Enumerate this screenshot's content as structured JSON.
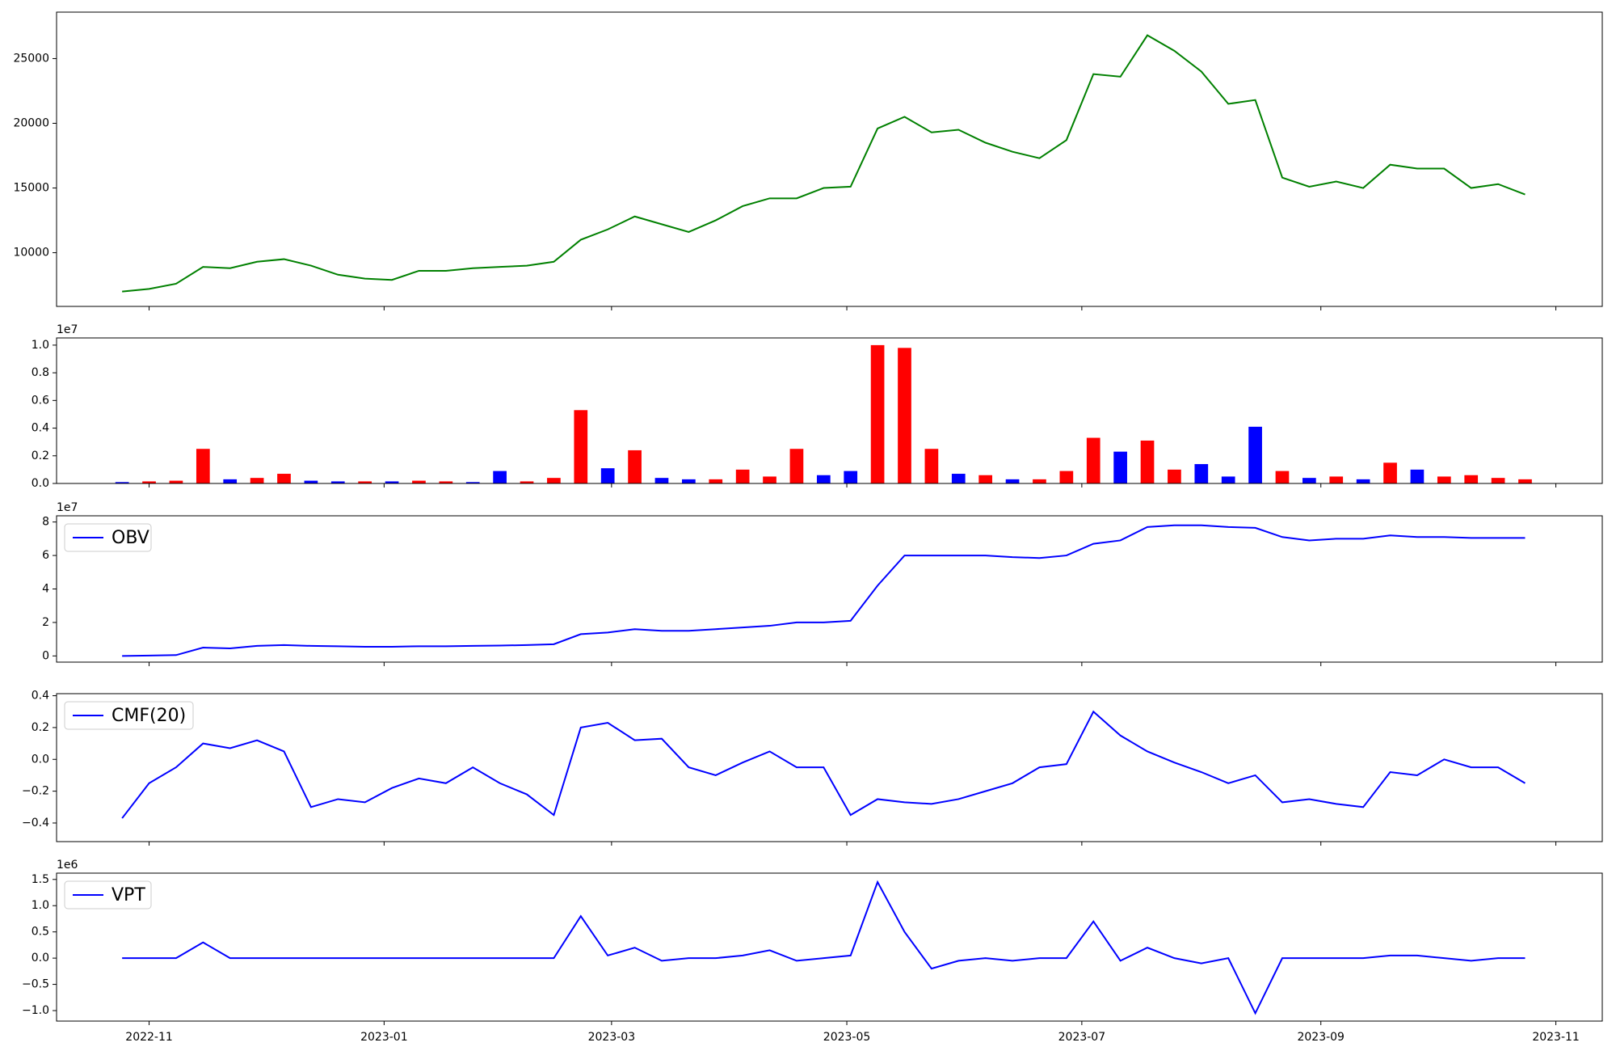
{
  "chart_data": [
    {
      "type": "line",
      "color": "#008000",
      "values": [
        7000,
        7200,
        7600,
        8900,
        8800,
        9300,
        9500,
        9000,
        8300,
        8000,
        7900,
        8600,
        8600,
        8800,
        8900,
        9000,
        9300,
        11000,
        11800,
        12800,
        12200,
        11600,
        12500,
        13600,
        14200,
        14200,
        15000,
        15100,
        19600,
        20500,
        19300,
        19500,
        18500,
        17800,
        17300,
        18700,
        23800,
        23600,
        26800,
        25600,
        24000,
        21500,
        21800,
        15800,
        15100,
        15500,
        15000,
        16800,
        16500,
        16500,
        15000,
        15300,
        14500
      ],
      "ylim": [
        5850,
        28590
      ],
      "yticks": [
        10000,
        15000,
        20000,
        25000
      ]
    },
    {
      "type": "bar",
      "offset_label": "1e7",
      "values": [
        100000,
        150000,
        200000,
        2500000,
        300000,
        400000,
        700000,
        200000,
        150000,
        150000,
        150000,
        200000,
        150000,
        100000,
        900000,
        150000,
        400000,
        5300000,
        1100000,
        2400000,
        400000,
        300000,
        300000,
        1000000,
        500000,
        2500000,
        600000,
        900000,
        10000000,
        9800000,
        2500000,
        700000,
        600000,
        300000,
        300000,
        900000,
        3300000,
        2300000,
        3100000,
        1000000,
        1400000,
        500000,
        4100000,
        900000,
        400000,
        500000,
        300000,
        1500000,
        1000000,
        500000,
        600000,
        400000,
        300000
      ],
      "colors": [
        "#0000ff",
        "#ff0000",
        "#ff0000",
        "#ff0000",
        "#0000ff",
        "#ff0000",
        "#ff0000",
        "#0000ff",
        "#0000ff",
        "#ff0000",
        "#0000ff",
        "#ff0000",
        "#ff0000",
        "#0000ff",
        "#0000ff",
        "#ff0000",
        "#ff0000",
        "#ff0000",
        "#0000ff",
        "#ff0000",
        "#0000ff",
        "#0000ff",
        "#ff0000",
        "#ff0000",
        "#ff0000",
        "#ff0000",
        "#0000ff",
        "#0000ff",
        "#ff0000",
        "#ff0000",
        "#ff0000",
        "#0000ff",
        "#ff0000",
        "#0000ff",
        "#ff0000",
        "#ff0000",
        "#ff0000",
        "#0000ff",
        "#ff0000",
        "#ff0000",
        "#0000ff",
        "#0000ff",
        "#0000ff",
        "#ff0000",
        "#0000ff",
        "#ff0000",
        "#0000ff",
        "#ff0000",
        "#0000ff",
        "#ff0000",
        "#ff0000",
        "#ff0000",
        "#ff0000"
      ],
      "ylim": [
        0,
        10520000
      ],
      "yticks": [
        {
          "value": 0,
          "label": "0.0"
        },
        {
          "value": 2000000,
          "label": "0.2"
        },
        {
          "value": 4000000,
          "label": "0.4"
        },
        {
          "value": 6000000,
          "label": "0.6"
        },
        {
          "value": 8000000,
          "label": "0.8"
        },
        {
          "value": 10000000,
          "label": "1.0"
        }
      ]
    },
    {
      "type": "line",
      "offset_label": "1e7",
      "legend": "upper left",
      "series": [
        {
          "name": "OBV",
          "color": "#0000ff",
          "values": [
            0,
            200000,
            500000,
            5000000,
            4500000,
            6000000,
            6500000,
            6000000,
            5800000,
            5500000,
            5500000,
            5800000,
            5800000,
            6000000,
            6200000,
            6500000,
            7000000,
            13000000,
            14000000,
            16000000,
            15000000,
            15000000,
            16000000,
            17000000,
            18000000,
            20000000,
            20000000,
            21000000,
            42000000,
            60000000,
            60000000,
            60000000,
            60000000,
            59000000,
            58500000,
            60000000,
            67000000,
            69000000,
            77000000,
            78000000,
            78000000,
            77000000,
            76500000,
            71000000,
            69000000,
            70000000,
            70000000,
            72000000,
            71000000,
            71000000,
            70500000,
            70500000,
            70500000
          ]
        }
      ],
      "ylim": [
        -3700000,
        83700000
      ],
      "yticks": [
        {
          "value": 0,
          "label": "0"
        },
        {
          "value": 20000000,
          "label": "2"
        },
        {
          "value": 40000000,
          "label": "4"
        },
        {
          "value": 60000000,
          "label": "6"
        },
        {
          "value": 80000000,
          "label": "8"
        }
      ]
    },
    {
      "type": "line",
      "legend": "upper left",
      "series": [
        {
          "name": "CMF(20)",
          "color": "#0000ff",
          "values": [
            -0.37,
            -0.15,
            -0.05,
            0.1,
            0.07,
            0.12,
            0.05,
            -0.3,
            -0.25,
            -0.27,
            -0.18,
            -0.12,
            -0.15,
            -0.05,
            -0.15,
            -0.22,
            -0.35,
            0.2,
            0.23,
            0.12,
            0.13,
            -0.05,
            -0.1,
            -0.02,
            0.05,
            -0.05,
            -0.05,
            -0.35,
            -0.25,
            -0.27,
            -0.28,
            -0.25,
            -0.2,
            -0.15,
            -0.05,
            -0.03,
            0.3,
            0.15,
            0.05,
            -0.02,
            -0.08,
            -0.15,
            -0.1,
            -0.27,
            -0.25,
            -0.28,
            -0.3,
            -0.08,
            -0.1,
            0.0,
            -0.05,
            -0.05,
            -0.15
          ]
        }
      ],
      "ylim": [
        -0.517,
        0.413
      ],
      "yticks": [
        {
          "value": -0.4,
          "label": "−0.4"
        },
        {
          "value": -0.2,
          "label": "−0.2"
        },
        {
          "value": 0,
          "label": "0.0"
        },
        {
          "value": 0.2,
          "label": "0.2"
        },
        {
          "value": 0.4,
          "label": "0.4"
        }
      ]
    },
    {
      "type": "line",
      "offset_label": "1e6",
      "legend": "upper left",
      "series": [
        {
          "name": "VPT",
          "color": "#0000ff",
          "values": [
            0,
            0,
            0,
            300000,
            0,
            0,
            0,
            0,
            0,
            0,
            0,
            0,
            0,
            0,
            0,
            0,
            0,
            800000,
            50000,
            200000,
            -50000,
            0,
            0,
            50000,
            150000,
            -50000,
            0,
            50000,
            1450000,
            500000,
            -200000,
            -50000,
            0,
            -50000,
            0,
            0,
            700000,
            -50000,
            200000,
            0,
            -100000,
            0,
            -1050000,
            0,
            0,
            0,
            0,
            50000,
            50000,
            0,
            -50000,
            0,
            0
          ]
        }
      ],
      "ylim": [
        -1200000,
        1620000
      ],
      "yticks": [
        {
          "value": -1000000,
          "label": "−1.0"
        },
        {
          "value": -500000,
          "label": "−0.5"
        },
        {
          "value": 0,
          "label": "0.0"
        },
        {
          "value": 500000,
          "label": "0.5"
        },
        {
          "value": 1000000,
          "label": "1.0"
        },
        {
          "value": 1500000,
          "label": "1.5"
        }
      ],
      "xlim": [
        -2.43,
        54.86
      ],
      "xticks": [
        {
          "value": 1.0,
          "label": "2022-11"
        },
        {
          "value": 9.71,
          "label": "2023-01"
        },
        {
          "value": 18.14,
          "label": "2023-03"
        },
        {
          "value": 26.86,
          "label": "2023-05"
        },
        {
          "value": 35.57,
          "label": "2023-07"
        },
        {
          "value": 44.43,
          "label": "2023-09"
        },
        {
          "value": 53.14,
          "label": "2023-11"
        }
      ]
    }
  ]
}
